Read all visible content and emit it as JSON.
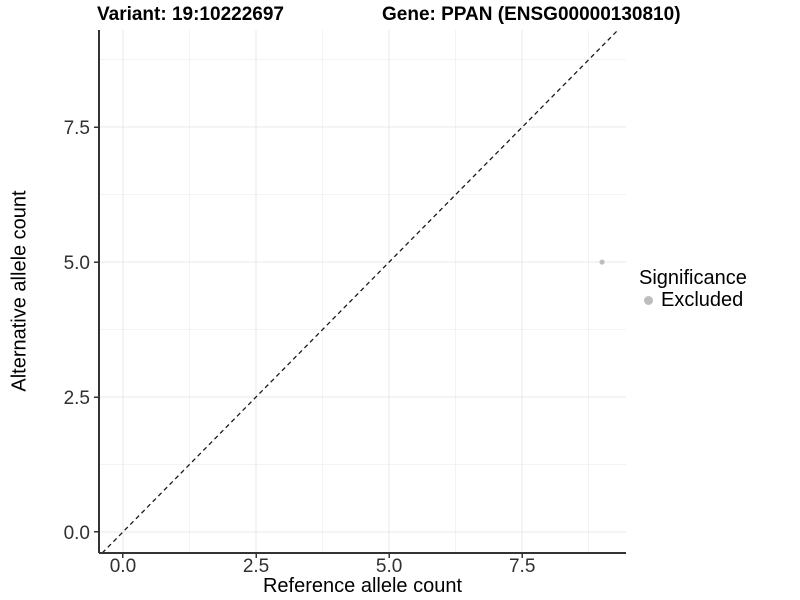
{
  "chart_data": {
    "type": "scatter",
    "titles": {
      "left": "Variant: 19:10222697",
      "right": "Gene: PPAN (ENSG00000130810)"
    },
    "xlabel": "Reference allele count",
    "ylabel": "Alternative allele count",
    "xlim": [
      -0.45,
      9.45
    ],
    "ylim": [
      -0.39,
      9.3
    ],
    "grid": true,
    "x_ticks": {
      "values": [
        0,
        2.5,
        5,
        7.5
      ],
      "labels": [
        "0.0",
        "2.5",
        "5.0",
        "7.5"
      ]
    },
    "y_ticks": {
      "values": [
        0,
        2.5,
        5,
        7.5
      ],
      "labels": [
        "0.0",
        "2.5",
        "5.0",
        "7.5"
      ]
    },
    "x_minor_ticks": [
      1.25,
      3.75,
      6.25,
      8.75
    ],
    "y_minor_ticks": [
      1.25,
      3.75,
      6.25,
      8.75
    ],
    "reference_line": {
      "kind": "abline",
      "slope": 1,
      "intercept": 0,
      "style": "dashed",
      "color": "#1a1a1a"
    },
    "series": [
      {
        "name": "Excluded",
        "color": "#bebebe",
        "points": [
          {
            "x": 9,
            "y": 5
          }
        ]
      }
    ],
    "legend": {
      "title": "Significance",
      "position": "right",
      "items": [
        {
          "label": "Excluded",
          "color": "#bebebe"
        }
      ]
    }
  }
}
